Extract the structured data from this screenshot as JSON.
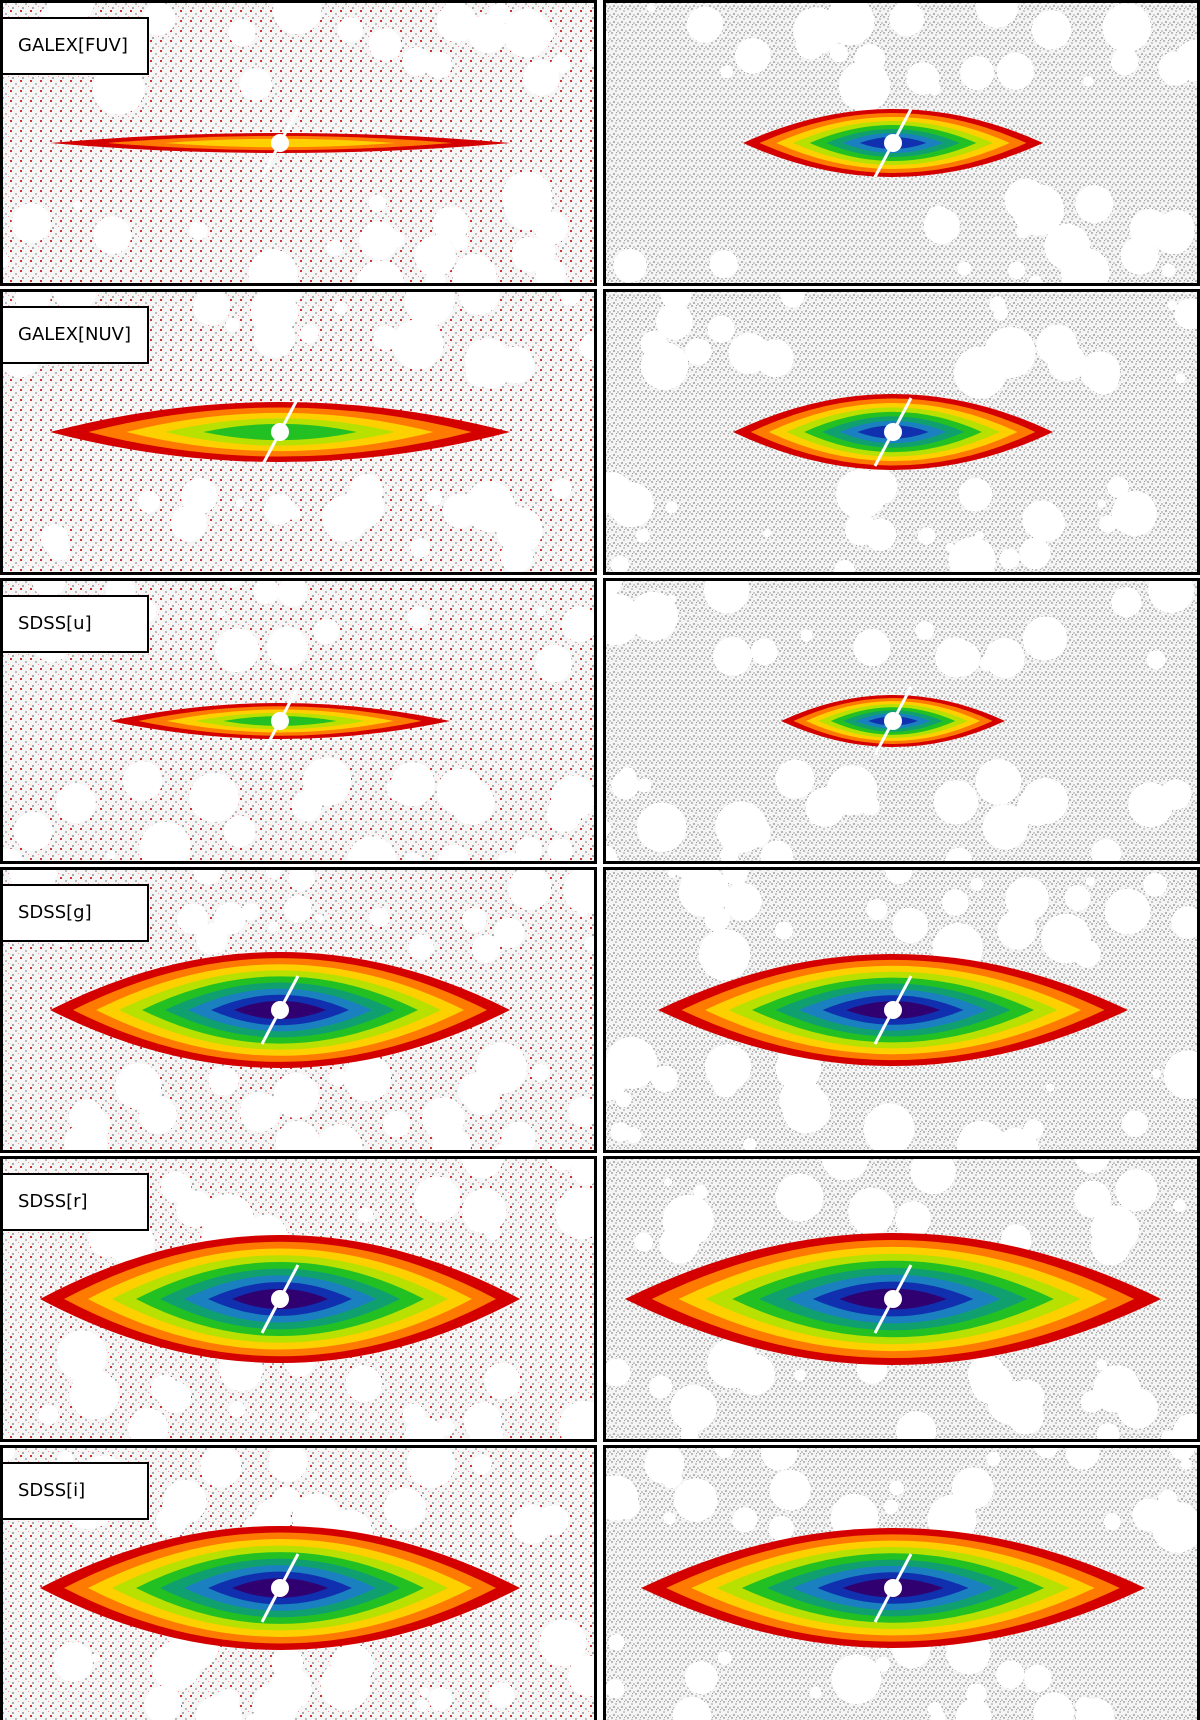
{
  "rows": [
    {
      "label": "GALEX[FUV]"
    },
    {
      "label": "GALEX[NUV]"
    },
    {
      "label": "SDSS[u]"
    },
    {
      "label": "SDSS[g]"
    },
    {
      "label": "SDSS[r]"
    },
    {
      "label": "SDSS[i]"
    }
  ]
}
